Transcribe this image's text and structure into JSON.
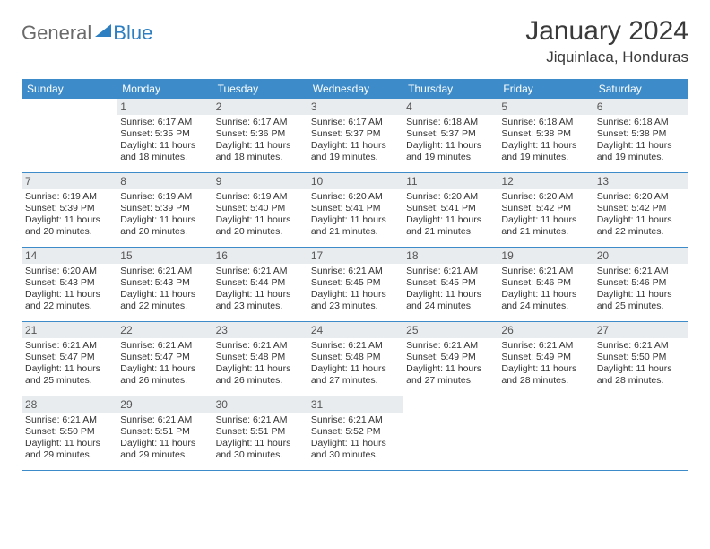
{
  "logo": {
    "word1": "General",
    "word2": "Blue"
  },
  "header": {
    "title": "January 2024",
    "location": "Jiquinlaca, Honduras"
  },
  "colors": {
    "accent": "#3d8cc9",
    "accent_dark": "#2d7fc1",
    "band": "#e9ecef",
    "text": "#333333",
    "title": "#3a3a3a",
    "logo_gray": "#6a6a6a"
  },
  "dow": [
    "Sunday",
    "Monday",
    "Tuesday",
    "Wednesday",
    "Thursday",
    "Friday",
    "Saturday"
  ],
  "weeks": [
    [
      {
        "n": "",
        "lines": []
      },
      {
        "n": "1",
        "lines": [
          "Sunrise: 6:17 AM",
          "Sunset: 5:35 PM",
          "Daylight: 11 hours",
          "and 18 minutes."
        ]
      },
      {
        "n": "2",
        "lines": [
          "Sunrise: 6:17 AM",
          "Sunset: 5:36 PM",
          "Daylight: 11 hours",
          "and 18 minutes."
        ]
      },
      {
        "n": "3",
        "lines": [
          "Sunrise: 6:17 AM",
          "Sunset: 5:37 PM",
          "Daylight: 11 hours",
          "and 19 minutes."
        ]
      },
      {
        "n": "4",
        "lines": [
          "Sunrise: 6:18 AM",
          "Sunset: 5:37 PM",
          "Daylight: 11 hours",
          "and 19 minutes."
        ]
      },
      {
        "n": "5",
        "lines": [
          "Sunrise: 6:18 AM",
          "Sunset: 5:38 PM",
          "Daylight: 11 hours",
          "and 19 minutes."
        ]
      },
      {
        "n": "6",
        "lines": [
          "Sunrise: 6:18 AM",
          "Sunset: 5:38 PM",
          "Daylight: 11 hours",
          "and 19 minutes."
        ]
      }
    ],
    [
      {
        "n": "7",
        "lines": [
          "Sunrise: 6:19 AM",
          "Sunset: 5:39 PM",
          "Daylight: 11 hours",
          "and 20 minutes."
        ]
      },
      {
        "n": "8",
        "lines": [
          "Sunrise: 6:19 AM",
          "Sunset: 5:39 PM",
          "Daylight: 11 hours",
          "and 20 minutes."
        ]
      },
      {
        "n": "9",
        "lines": [
          "Sunrise: 6:19 AM",
          "Sunset: 5:40 PM",
          "Daylight: 11 hours",
          "and 20 minutes."
        ]
      },
      {
        "n": "10",
        "lines": [
          "Sunrise: 6:20 AM",
          "Sunset: 5:41 PM",
          "Daylight: 11 hours",
          "and 21 minutes."
        ]
      },
      {
        "n": "11",
        "lines": [
          "Sunrise: 6:20 AM",
          "Sunset: 5:41 PM",
          "Daylight: 11 hours",
          "and 21 minutes."
        ]
      },
      {
        "n": "12",
        "lines": [
          "Sunrise: 6:20 AM",
          "Sunset: 5:42 PM",
          "Daylight: 11 hours",
          "and 21 minutes."
        ]
      },
      {
        "n": "13",
        "lines": [
          "Sunrise: 6:20 AM",
          "Sunset: 5:42 PM",
          "Daylight: 11 hours",
          "and 22 minutes."
        ]
      }
    ],
    [
      {
        "n": "14",
        "lines": [
          "Sunrise: 6:20 AM",
          "Sunset: 5:43 PM",
          "Daylight: 11 hours",
          "and 22 minutes."
        ]
      },
      {
        "n": "15",
        "lines": [
          "Sunrise: 6:21 AM",
          "Sunset: 5:43 PM",
          "Daylight: 11 hours",
          "and 22 minutes."
        ]
      },
      {
        "n": "16",
        "lines": [
          "Sunrise: 6:21 AM",
          "Sunset: 5:44 PM",
          "Daylight: 11 hours",
          "and 23 minutes."
        ]
      },
      {
        "n": "17",
        "lines": [
          "Sunrise: 6:21 AM",
          "Sunset: 5:45 PM",
          "Daylight: 11 hours",
          "and 23 minutes."
        ]
      },
      {
        "n": "18",
        "lines": [
          "Sunrise: 6:21 AM",
          "Sunset: 5:45 PM",
          "Daylight: 11 hours",
          "and 24 minutes."
        ]
      },
      {
        "n": "19",
        "lines": [
          "Sunrise: 6:21 AM",
          "Sunset: 5:46 PM",
          "Daylight: 11 hours",
          "and 24 minutes."
        ]
      },
      {
        "n": "20",
        "lines": [
          "Sunrise: 6:21 AM",
          "Sunset: 5:46 PM",
          "Daylight: 11 hours",
          "and 25 minutes."
        ]
      }
    ],
    [
      {
        "n": "21",
        "lines": [
          "Sunrise: 6:21 AM",
          "Sunset: 5:47 PM",
          "Daylight: 11 hours",
          "and 25 minutes."
        ]
      },
      {
        "n": "22",
        "lines": [
          "Sunrise: 6:21 AM",
          "Sunset: 5:47 PM",
          "Daylight: 11 hours",
          "and 26 minutes."
        ]
      },
      {
        "n": "23",
        "lines": [
          "Sunrise: 6:21 AM",
          "Sunset: 5:48 PM",
          "Daylight: 11 hours",
          "and 26 minutes."
        ]
      },
      {
        "n": "24",
        "lines": [
          "Sunrise: 6:21 AM",
          "Sunset: 5:48 PM",
          "Daylight: 11 hours",
          "and 27 minutes."
        ]
      },
      {
        "n": "25",
        "lines": [
          "Sunrise: 6:21 AM",
          "Sunset: 5:49 PM",
          "Daylight: 11 hours",
          "and 27 minutes."
        ]
      },
      {
        "n": "26",
        "lines": [
          "Sunrise: 6:21 AM",
          "Sunset: 5:49 PM",
          "Daylight: 11 hours",
          "and 28 minutes."
        ]
      },
      {
        "n": "27",
        "lines": [
          "Sunrise: 6:21 AM",
          "Sunset: 5:50 PM",
          "Daylight: 11 hours",
          "and 28 minutes."
        ]
      }
    ],
    [
      {
        "n": "28",
        "lines": [
          "Sunrise: 6:21 AM",
          "Sunset: 5:50 PM",
          "Daylight: 11 hours",
          "and 29 minutes."
        ]
      },
      {
        "n": "29",
        "lines": [
          "Sunrise: 6:21 AM",
          "Sunset: 5:51 PM",
          "Daylight: 11 hours",
          "and 29 minutes."
        ]
      },
      {
        "n": "30",
        "lines": [
          "Sunrise: 6:21 AM",
          "Sunset: 5:51 PM",
          "Daylight: 11 hours",
          "and 30 minutes."
        ]
      },
      {
        "n": "31",
        "lines": [
          "Sunrise: 6:21 AM",
          "Sunset: 5:52 PM",
          "Daylight: 11 hours",
          "and 30 minutes."
        ]
      },
      {
        "n": "",
        "lines": []
      },
      {
        "n": "",
        "lines": []
      },
      {
        "n": "",
        "lines": []
      }
    ]
  ]
}
